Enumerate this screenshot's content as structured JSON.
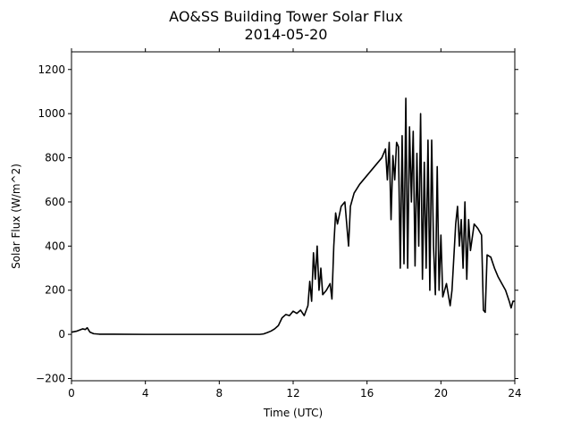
{
  "chart_data": {
    "type": "line",
    "title": "AO&SS Building Tower Solar Flux",
    "subtitle": "2014-05-20",
    "x_label": "Time (UTC)",
    "y_label": "Solar Flux (W/m^2)",
    "x": [
      0,
      0.3,
      0.6,
      0.75,
      0.85,
      1.0,
      1.2,
      1.5,
      4,
      8,
      10.2,
      10.4,
      10.6,
      10.8,
      11.0,
      11.2,
      11.4,
      11.6,
      11.8,
      12.0,
      12.2,
      12.4,
      12.6,
      12.8,
      12.9,
      13.0,
      13.1,
      13.2,
      13.3,
      13.4,
      13.5,
      13.6,
      13.8,
      14.0,
      14.1,
      14.2,
      14.3,
      14.4,
      14.5,
      14.6,
      14.8,
      15.0,
      15.1,
      15.3,
      15.6,
      16.0,
      16.4,
      16.8,
      17.0,
      17.1,
      17.2,
      17.3,
      17.4,
      17.5,
      17.6,
      17.7,
      17.8,
      17.9,
      18.0,
      18.1,
      18.2,
      18.3,
      18.4,
      18.5,
      18.6,
      18.7,
      18.8,
      18.9,
      19.0,
      19.1,
      19.2,
      19.3,
      19.4,
      19.5,
      19.6,
      19.7,
      19.8,
      19.9,
      20.0,
      20.1,
      20.3,
      20.5,
      20.6,
      20.8,
      20.9,
      21.0,
      21.1,
      21.2,
      21.3,
      21.4,
      21.5,
      21.6,
      21.8,
      22.0,
      22.2,
      22.3,
      22.4,
      22.5,
      22.7,
      22.9,
      23.1,
      23.3,
      23.5,
      23.7,
      23.8,
      23.9,
      24
    ],
    "series": [
      {
        "name": "Solar Flux",
        "color": "#000000",
        "values": [
          10,
          15,
          25,
          22,
          30,
          10,
          3,
          1,
          0,
          0,
          0,
          2,
          8,
          15,
          25,
          40,
          75,
          90,
          85,
          105,
          95,
          110,
          85,
          130,
          240,
          150,
          370,
          250,
          400,
          200,
          300,
          180,
          200,
          230,
          160,
          400,
          550,
          500,
          540,
          580,
          600,
          400,
          580,
          640,
          680,
          720,
          760,
          800,
          840,
          700,
          870,
          520,
          810,
          700,
          870,
          850,
          300,
          900,
          320,
          1070,
          300,
          940,
          600,
          920,
          310,
          820,
          400,
          1000,
          250,
          780,
          300,
          880,
          200,
          880,
          400,
          180,
          760,
          200,
          450,
          170,
          230,
          130,
          200,
          500,
          580,
          400,
          520,
          300,
          600,
          250,
          520,
          380,
          500,
          480,
          450,
          110,
          100,
          360,
          350,
          300,
          260,
          230,
          200,
          150,
          120,
          150,
          150
        ]
      }
    ],
    "xlim": [
      0,
      24
    ],
    "xticks": [
      0,
      4,
      8,
      12,
      16,
      20,
      24
    ],
    "ylim": [
      -210,
      1280
    ],
    "yticks": [
      {
        "value": -200,
        "label": "−200"
      },
      0,
      200,
      400,
      600,
      800,
      1000,
      1200
    ]
  }
}
